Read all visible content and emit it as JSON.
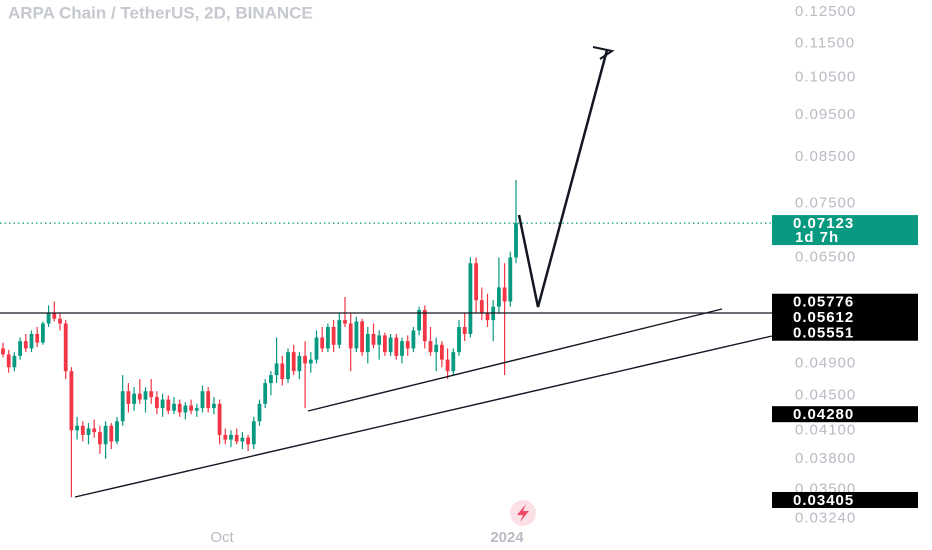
{
  "chart_data": {
    "type": "candlestick",
    "title": "ARPA Chain / TetherUS, 2D, BINANCE",
    "log_scale": true,
    "ylim": [
      0.0298,
      0.1291
    ],
    "yticks": [
      {
        "value": 0.125,
        "label": "0.12500"
      },
      {
        "value": 0.115,
        "label": "0.11500"
      },
      {
        "value": 0.105,
        "label": "0.10500"
      },
      {
        "value": 0.095,
        "label": "0.09500"
      },
      {
        "value": 0.085,
        "label": "0.08500"
      },
      {
        "value": 0.075,
        "label": "0.07500"
      },
      {
        "value": 0.065,
        "label": "0.06500"
      },
      {
        "value": 0.049,
        "label": "0.04900"
      },
      {
        "value": 0.045,
        "label": "0.04500"
      },
      {
        "value": 0.041,
        "label": "0.04100"
      },
      {
        "value": 0.038,
        "label": "0.03800"
      },
      {
        "value": 0.035,
        "label": "0.03500"
      },
      {
        "value": 0.0324,
        "label": "0.03240"
      }
    ],
    "xtick_labels": [
      "Oct",
      "2024"
    ],
    "up_color": "#089981",
    "down_color": "#f23645",
    "open": [
      0.051,
      0.0502,
      0.0485,
      0.05,
      0.052,
      0.051,
      0.053,
      0.0518,
      0.0545,
      0.056,
      0.0552,
      0.0545,
      0.048,
      0.041,
      0.0415,
      0.0405,
      0.0412,
      0.0408,
      0.0395,
      0.0415,
      0.0398,
      0.042,
      0.0455,
      0.044,
      0.0452,
      0.0445,
      0.0455,
      0.0448,
      0.0435,
      0.0445,
      0.0432,
      0.044,
      0.043,
      0.0438,
      0.0432,
      0.0435,
      0.0455,
      0.0435,
      0.044,
      0.0405,
      0.04,
      0.0405,
      0.0398,
      0.0402,
      0.0395,
      0.042,
      0.044,
      0.0465,
      0.0475,
      0.049,
      0.047,
      0.0505,
      0.048,
      0.05,
      0.049,
      0.0495,
      0.0525,
      0.051,
      0.054,
      0.0515,
      0.055,
      0.0545,
      0.051,
      0.0548,
      0.0505,
      0.053,
      0.0515,
      0.0528,
      0.0505,
      0.0525,
      0.05,
      0.052,
      0.051,
      0.0535,
      0.0565,
      0.052,
      0.0505,
      0.0515,
      0.0495,
      0.048,
      0.0505,
      0.054,
      0.053,
      0.064,
      0.058,
      0.056,
      0.055,
      0.057,
      0.06,
      0.0578,
      0.065
    ],
    "high": [
      0.0518,
      0.0508,
      0.0505,
      0.0525,
      0.053,
      0.0535,
      0.054,
      0.0548,
      0.0572,
      0.0578,
      0.056,
      0.055,
      0.0485,
      0.0425,
      0.042,
      0.0418,
      0.0422,
      0.0415,
      0.042,
      0.0418,
      0.0425,
      0.0475,
      0.0465,
      0.046,
      0.047,
      0.046,
      0.047,
      0.0455,
      0.0452,
      0.045,
      0.0448,
      0.0445,
      0.0442,
      0.0445,
      0.044,
      0.0462,
      0.046,
      0.0448,
      0.0445,
      0.0412,
      0.041,
      0.0412,
      0.0408,
      0.0405,
      0.0425,
      0.0445,
      0.047,
      0.048,
      0.0525,
      0.05,
      0.051,
      0.0515,
      0.0505,
      0.052,
      0.0505,
      0.0535,
      0.054,
      0.0545,
      0.055,
      0.056,
      0.0585,
      0.056,
      0.0555,
      0.0552,
      0.054,
      0.0545,
      0.0535,
      0.0532,
      0.053,
      0.053,
      0.0525,
      0.0528,
      0.054,
      0.057,
      0.0572,
      0.054,
      0.0525,
      0.052,
      0.051,
      0.051,
      0.055,
      0.056,
      0.065,
      0.065,
      0.06,
      0.059,
      0.058,
      0.065,
      0.064,
      0.066,
      0.0799
    ],
    "low": [
      0.0498,
      0.0478,
      0.048,
      0.0495,
      0.0505,
      0.0505,
      0.0512,
      0.0515,
      0.054,
      0.0548,
      0.0535,
      0.047,
      0.0343,
      0.04,
      0.0398,
      0.0395,
      0.0402,
      0.0385,
      0.038,
      0.039,
      0.0395,
      0.0415,
      0.043,
      0.0432,
      0.044,
      0.043,
      0.044,
      0.0428,
      0.0425,
      0.0428,
      0.0428,
      0.0425,
      0.0422,
      0.0428,
      0.0425,
      0.043,
      0.043,
      0.0428,
      0.0395,
      0.0395,
      0.0392,
      0.0395,
      0.039,
      0.0388,
      0.039,
      0.0415,
      0.0435,
      0.045,
      0.0465,
      0.0462,
      0.0465,
      0.0475,
      0.047,
      0.0435,
      0.0478,
      0.049,
      0.0505,
      0.0505,
      0.0505,
      0.051,
      0.054,
      0.048,
      0.0505,
      0.05,
      0.049,
      0.051,
      0.0495,
      0.05,
      0.05,
      0.0495,
      0.049,
      0.05,
      0.0505,
      0.0528,
      0.051,
      0.05,
      0.048,
      0.0485,
      0.047,
      0.0475,
      0.05,
      0.052,
      0.0525,
      0.056,
      0.055,
      0.054,
      0.052,
      0.056,
      0.0475,
      0.057,
      0.064
    ],
    "close": [
      0.0502,
      0.0485,
      0.05,
      0.052,
      0.051,
      0.053,
      0.0518,
      0.0545,
      0.056,
      0.0552,
      0.0545,
      0.048,
      0.041,
      0.0415,
      0.0405,
      0.0412,
      0.0408,
      0.0395,
      0.0415,
      0.0398,
      0.042,
      0.0455,
      0.044,
      0.0452,
      0.0445,
      0.0455,
      0.0448,
      0.0435,
      0.0445,
      0.0432,
      0.044,
      0.043,
      0.0438,
      0.0432,
      0.0435,
      0.0455,
      0.0435,
      0.044,
      0.0405,
      0.04,
      0.0405,
      0.0398,
      0.0402,
      0.0395,
      0.042,
      0.044,
      0.0465,
      0.0475,
      0.049,
      0.047,
      0.0505,
      0.048,
      0.05,
      0.049,
      0.0495,
      0.0525,
      0.051,
      0.054,
      0.0515,
      0.055,
      0.0545,
      0.051,
      0.0548,
      0.0505,
      0.053,
      0.0515,
      0.0528,
      0.0505,
      0.0525,
      0.05,
      0.052,
      0.051,
      0.0535,
      0.0565,
      0.052,
      0.0505,
      0.0515,
      0.0495,
      0.048,
      0.0505,
      0.054,
      0.053,
      0.064,
      0.058,
      0.056,
      0.055,
      0.057,
      0.06,
      0.0578,
      0.065,
      0.0712
    ],
    "current_price": {
      "value": 0.07123,
      "label": "0.07123",
      "countdown": "1d 7h",
      "color": "#089981"
    },
    "price_labels": [
      {
        "value": 0.05776,
        "label": "0.05776"
      },
      {
        "value": 0.05612,
        "label": "0.05612"
      },
      {
        "value": 0.05551,
        "label": "0.05551"
      },
      {
        "value": 0.0428,
        "label": "0.04280"
      },
      {
        "value": 0.03405,
        "label": "0.03405"
      }
    ]
  }
}
